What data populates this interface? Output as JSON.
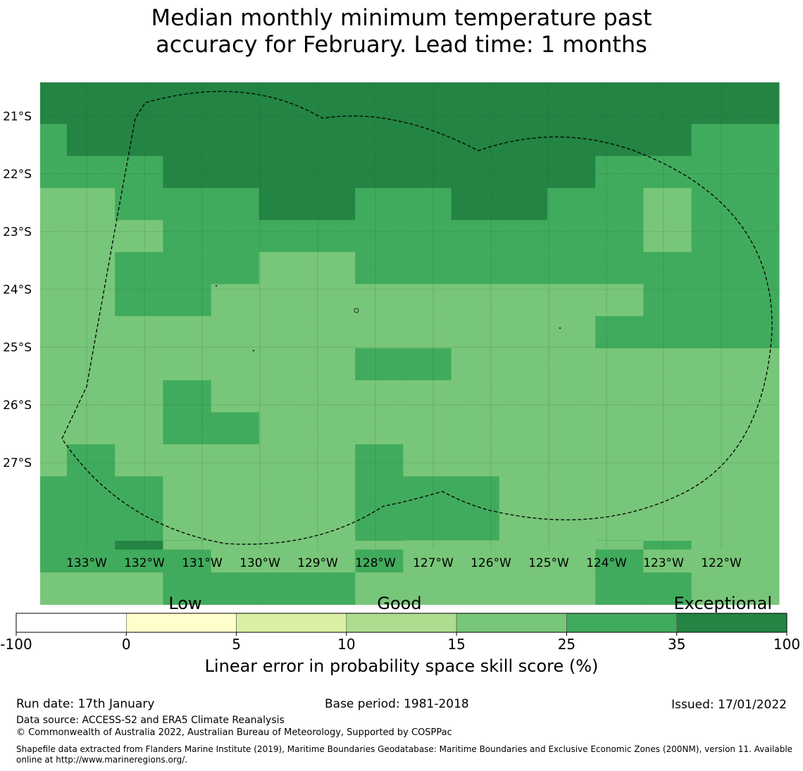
{
  "title_line1": "Median monthly minimum temperature past",
  "title_line2": "accuracy for February. Lead time: 1 months",
  "map": {
    "lat_labels": [
      "21°S",
      "22°S",
      "23°S",
      "24°S",
      "25°S",
      "26°S",
      "27°S"
    ],
    "lon_labels": [
      "133°W",
      "132°W",
      "131°W",
      "130°W",
      "129°W",
      "128°W",
      "127°W",
      "126°W",
      "125°W",
      "124°W",
      "123°W",
      "122°W"
    ],
    "grid_rows": [
      "666666666666666",
      "566666666666665",
      "555666666666555",
      "445556655665545",
      "444555555555545",
      "445554455555555",
      "445544444444455",
      "444444444444555",
      "444444455444444",
      "444544444444444",
      "444554444444444",
      "454444454444444",
      "555444455544444",
      "555444455544444",
      "555544454444544",
      "444555544444554",
      "555555555555555",
      "556444444444454"
    ],
    "land_color": "#6db66d"
  },
  "colorbar": {
    "categories": [
      "Low",
      "Good",
      "Exceptional"
    ],
    "ticks": [
      "-100",
      "0",
      "5",
      "10",
      "15",
      "25",
      "35",
      "100"
    ],
    "colors": [
      "#ffffff",
      "#ffffcc",
      "#d9f0a3",
      "#addd8e",
      "#78c679",
      "#41ab5d",
      "#238443"
    ],
    "label": "Linear error in probability space skill score (%)"
  },
  "footer": {
    "run_date": "Run date: 17th January",
    "base_period": "Base period: 1981-2018",
    "issued": "Issued: 17/01/2022",
    "data_source": "Data source: ACCESS-S2 and ERA5 Climate Reanalysis",
    "copyright": "© Commonwealth of Australia 2022, Australian Bureau of Meteorology, Supported by COSPPac",
    "shapefile": "Shapefile data extracted from Flanders Marine Institute (2019), Maritime Boundaries Geodatabase: Maritime Boundaries and Exclusive Economic Zones (200NM), version 11. Available online at http://www.marineregions.org/."
  }
}
